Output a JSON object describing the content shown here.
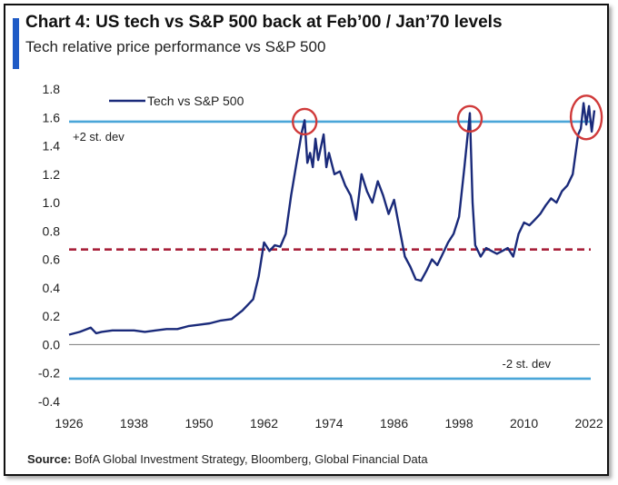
{
  "title": "Chart 4: US tech vs S&P 500 back at Feb’00 / Jan’70  levels",
  "subtitle": "Tech relative price performance vs S&P 500",
  "source_label": "Source:",
  "source_text": "BofA Global Investment Strategy, Bloomberg, Global Financial  Data",
  "colors": {
    "series": "#1a2a7a",
    "std_line": "#4aa6d8",
    "mean_line": "#a8203a",
    "circle": "#d03a3a",
    "accent": "#1f5bc6"
  },
  "chart_data": {
    "type": "line",
    "xlim": [
      1926,
      2024
    ],
    "ylim": [
      -0.4,
      1.8
    ],
    "x_ticks": [
      1926,
      1938,
      1950,
      1962,
      1974,
      1986,
      1998,
      2010,
      2022
    ],
    "y_ticks": [
      1.8,
      1.6,
      1.4,
      1.2,
      1.0,
      0.8,
      0.6,
      0.4,
      0.2,
      0.0,
      -0.2,
      -0.4
    ],
    "y_tick_labels": [
      "1.8",
      "1.6",
      "1.4",
      "1.2",
      "1.0",
      "0.8",
      "0.6",
      "0.4",
      "0.2",
      "0.0",
      "-0.2",
      "-0.4"
    ],
    "series": [
      {
        "name": "Tech vs  S&P 500",
        "x": [
          1926,
          1928,
          1930,
          1931,
          1932,
          1934,
          1936,
          1938,
          1940,
          1942,
          1944,
          1946,
          1948,
          1950,
          1952,
          1954,
          1956,
          1958,
          1960,
          1961,
          1962,
          1963,
          1964,
          1965,
          1966,
          1967,
          1968,
          1969,
          1969.5,
          1970,
          1970.5,
          1971,
          1971.5,
          1972,
          1973,
          1973.5,
          1974,
          1975,
          1976,
          1977,
          1978,
          1979,
          1980,
          1981,
          1982,
          1983,
          1984,
          1985,
          1986,
          1987,
          1988,
          1989,
          1990,
          1991,
          1992,
          1993,
          1994,
          1995,
          1996,
          1997,
          1998,
          1999,
          2000,
          2000.5,
          2001,
          2002,
          2003,
          2004,
          2005,
          2006,
          2007,
          2008,
          2009,
          2010,
          2011,
          2012,
          2013,
          2014,
          2015,
          2016,
          2017,
          2018,
          2019,
          2020,
          2020.5,
          2021,
          2021.5,
          2022,
          2022.5,
          2023
        ],
        "values": [
          0.07,
          0.09,
          0.12,
          0.08,
          0.09,
          0.1,
          0.1,
          0.1,
          0.09,
          0.1,
          0.11,
          0.11,
          0.13,
          0.14,
          0.15,
          0.17,
          0.18,
          0.24,
          0.32,
          0.48,
          0.72,
          0.66,
          0.7,
          0.69,
          0.78,
          1.05,
          1.28,
          1.5,
          1.58,
          1.28,
          1.35,
          1.25,
          1.45,
          1.3,
          1.48,
          1.25,
          1.35,
          1.2,
          1.22,
          1.12,
          1.05,
          0.88,
          1.2,
          1.08,
          1.0,
          1.15,
          1.05,
          0.92,
          1.02,
          0.82,
          0.62,
          0.55,
          0.46,
          0.45,
          0.52,
          0.6,
          0.56,
          0.64,
          0.72,
          0.78,
          0.9,
          1.25,
          1.63,
          1.0,
          0.7,
          0.62,
          0.68,
          0.66,
          0.64,
          0.66,
          0.68,
          0.62,
          0.78,
          0.86,
          0.84,
          0.88,
          0.92,
          0.98,
          1.03,
          1.0,
          1.08,
          1.12,
          1.2,
          1.48,
          1.52,
          1.7,
          1.55,
          1.68,
          1.5,
          1.65
        ]
      }
    ],
    "reference_lines": [
      {
        "label": "+2 st. dev",
        "value": 1.57,
        "style": "solid"
      },
      {
        "label": "",
        "value": 0.67,
        "style": "dashed"
      },
      {
        "label": "-2 st. dev",
        "value": -0.24,
        "style": "solid"
      }
    ],
    "highlights": [
      {
        "x": 1969.5,
        "y": 1.57
      },
      {
        "x": 2000,
        "y": 1.59
      },
      {
        "x": 2021.5,
        "y": 1.6
      }
    ],
    "grid": false,
    "legend": "top-left"
  }
}
